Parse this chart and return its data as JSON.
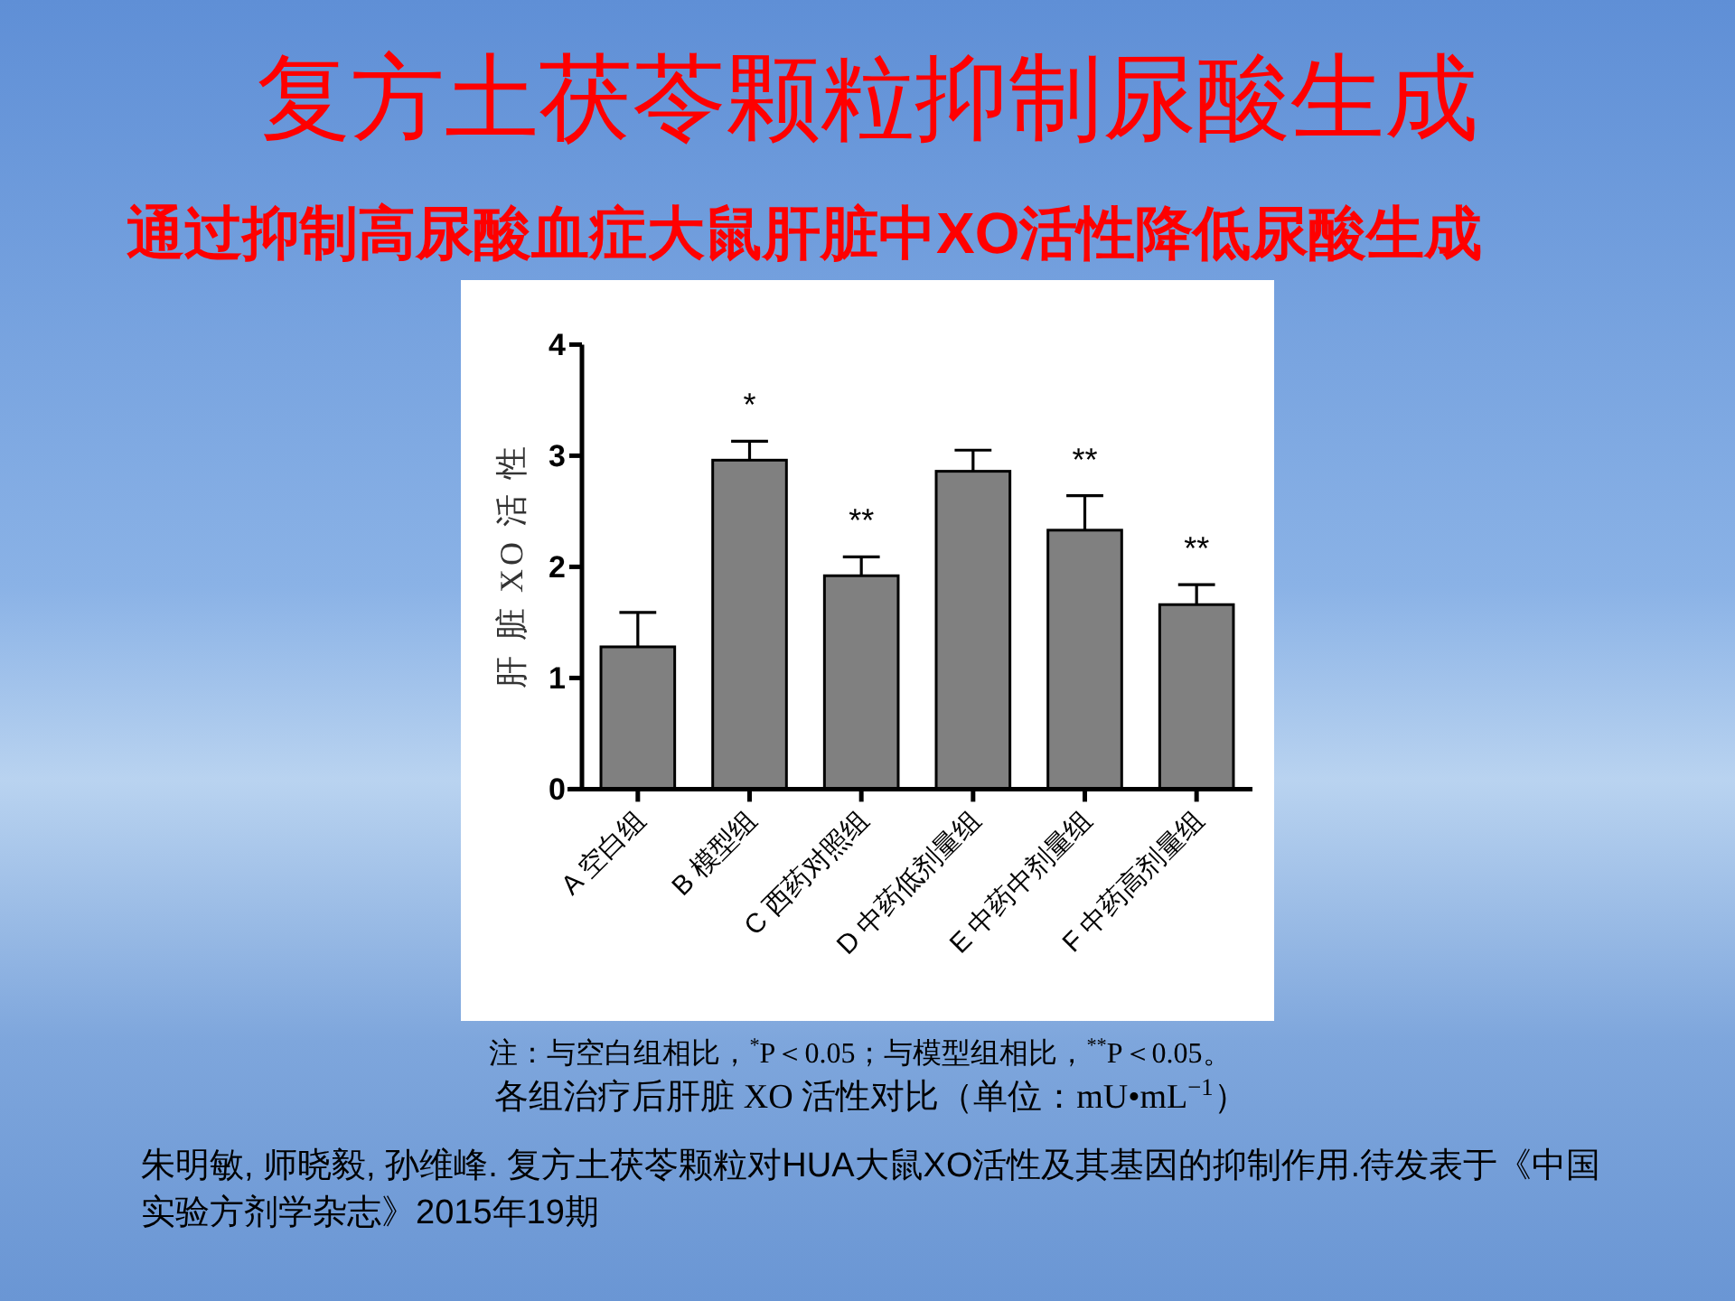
{
  "chart_data": {
    "type": "bar",
    "title": "复方土茯苓颗粒抑制尿酸生成",
    "subtitle": "通过抑制高尿酸血症大鼠肝脏中XO活性降低尿酸生成",
    "ylabel": "肝 脏 XO 活 性",
    "categories": [
      "A 空白组",
      "B 模型组",
      "C 西药对照组",
      "D 中药低剂量组",
      "E 中药中剂量组",
      "F 中药高剂量组"
    ],
    "values": [
      1.28,
      2.96,
      1.92,
      2.86,
      2.33,
      1.66
    ],
    "color": "#808080",
    "errors": [
      [
        1.28,
        1.59
      ],
      [
        2.96,
        3.13
      ],
      [
        1.92,
        2.09
      ],
      [
        2.86,
        3.05
      ],
      [
        2.33,
        2.64
      ],
      [
        1.66,
        1.84
      ]
    ],
    "ylim": [
      0,
      4
    ],
    "yticks": [
      0,
      1,
      2,
      3,
      4
    ],
    "annotations": [
      {
        "text": "*",
        "x": "B 模型组",
        "y": 3.13
      },
      {
        "text": "**",
        "x": "C 西药对照组",
        "y": 2.09
      },
      {
        "text": "**",
        "x": "E 中药中剂量组",
        "y": 2.64
      },
      {
        "text": "**",
        "x": "F 中药高剂量组",
        "y": 1.84
      },
      "注：与空白组相比，$^{*}$P＜0.05；与模型组相比，$^{**}$P＜0.05。",
      "各组治疗后肝脏 XO 活性对比（单位：mU•mL$^{−1}$）",
      "朱明敏, 师晓毅, 孙维峰. 复方土茯苓颗粒对HUA大鼠XO活性及其基因的抑制作用.待发表于《中国实验方剂学杂志》2015年19期"
    ]
  }
}
